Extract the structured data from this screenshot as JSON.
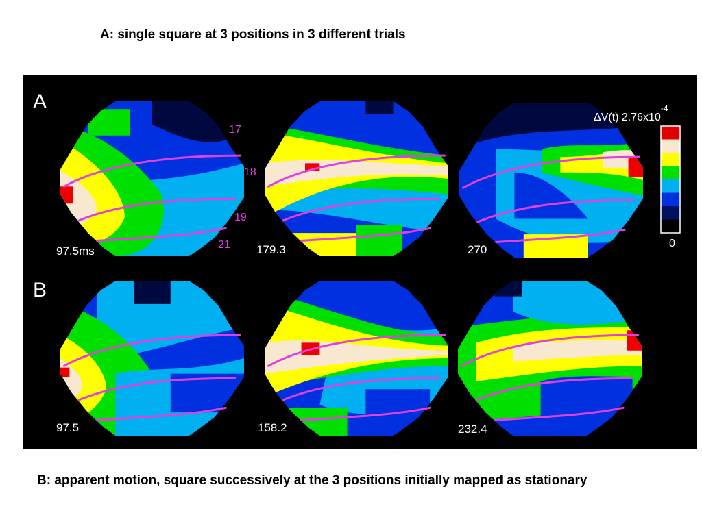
{
  "caption_a": "A: single square at 3 positions in 3 different trials",
  "caption_b": "B: apparent motion, square successively at the 3 positions initially mapped as stationary",
  "panel_a_letter": "A",
  "panel_b_letter": "B",
  "area_labels": [
    "17",
    "18",
    "19",
    "21"
  ],
  "time_labels_a": [
    "97.5ms",
    "179.3",
    "270"
  ],
  "time_labels_b": [
    "97.5",
    "158.2",
    "232.4"
  ],
  "colorbar": {
    "label_prefix": "ΔV(t) 2.76x10",
    "label_exponent": "-4",
    "min_label": "0",
    "colors": [
      "#e00000",
      "#f8e8d0",
      "#ffff00",
      "#00e000",
      "#00b0f0",
      "#0030e0",
      "#001060",
      "#000000"
    ]
  },
  "palette": {
    "dark": "#000840",
    "blue": "#0030e0",
    "light_blue": "#00b0f0",
    "green": "#00e000",
    "yellow": "#ffff00",
    "cream": "#f8e8d0",
    "red": "#ee0000",
    "contour": "#e040e0"
  }
}
